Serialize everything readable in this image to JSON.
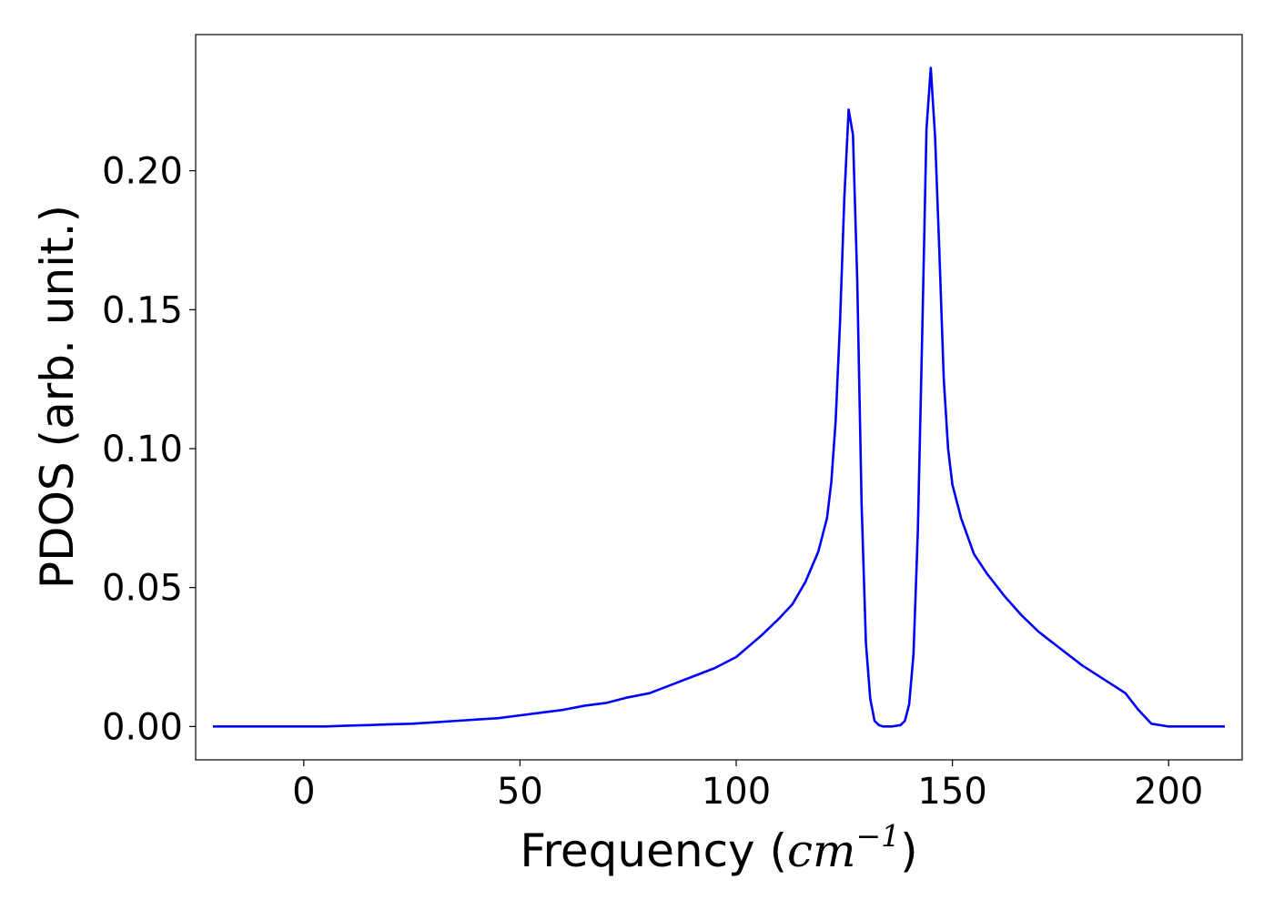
{
  "chart_data": {
    "type": "line",
    "title": "",
    "xlabel": "Frequency (",
    "xlabel_math": "cm",
    "xlabel_sup": "−1",
    "xlabel_close": ")",
    "ylabel": "PDOS (arb. unit.)",
    "xlim": [
      -25,
      217
    ],
    "ylim": [
      -0.012,
      0.249
    ],
    "xticks": [
      0,
      50,
      100,
      150,
      200
    ],
    "xtick_labels": [
      "0",
      "50",
      "100",
      "150",
      "200"
    ],
    "yticks": [
      0.0,
      0.05,
      0.1,
      0.15,
      0.2
    ],
    "ytick_labels": [
      "0.00",
      "0.05",
      "0.10",
      "0.15",
      "0.20"
    ],
    "grid": false,
    "line_color": "#0000ff",
    "series": [
      {
        "x": [
          -21,
          0,
          5,
          10,
          15,
          20,
          25,
          30,
          35,
          40,
          45,
          50,
          55,
          60,
          65,
          70,
          75,
          80,
          85,
          90,
          95,
          100,
          103,
          106,
          110,
          113,
          116,
          119,
          121,
          122,
          123,
          124,
          125,
          126,
          127,
          128,
          129,
          130,
          131,
          132,
          133,
          134,
          136,
          138,
          139,
          140,
          141,
          142,
          143,
          144,
          145,
          146,
          147,
          148,
          149,
          150,
          152,
          155,
          158,
          162,
          166,
          170,
          175,
          180,
          185,
          190,
          193,
          196,
          200,
          213
        ],
        "y": [
          0.0,
          0.0,
          0.0,
          0.0003,
          0.0005,
          0.0008,
          0.001,
          0.0015,
          0.002,
          0.0025,
          0.003,
          0.004,
          0.005,
          0.006,
          0.0075,
          0.0085,
          0.0105,
          0.012,
          0.015,
          0.018,
          0.021,
          0.025,
          0.029,
          0.033,
          0.039,
          0.044,
          0.052,
          0.063,
          0.075,
          0.088,
          0.11,
          0.145,
          0.19,
          0.222,
          0.213,
          0.16,
          0.08,
          0.03,
          0.01,
          0.002,
          0.0005,
          0.0,
          0.0,
          0.0005,
          0.002,
          0.008,
          0.026,
          0.07,
          0.14,
          0.215,
          0.237,
          0.212,
          0.17,
          0.125,
          0.1,
          0.087,
          0.075,
          0.062,
          0.055,
          0.047,
          0.04,
          0.034,
          0.028,
          0.022,
          0.017,
          0.012,
          0.006,
          0.001,
          0.0,
          0.0
        ]
      }
    ]
  }
}
